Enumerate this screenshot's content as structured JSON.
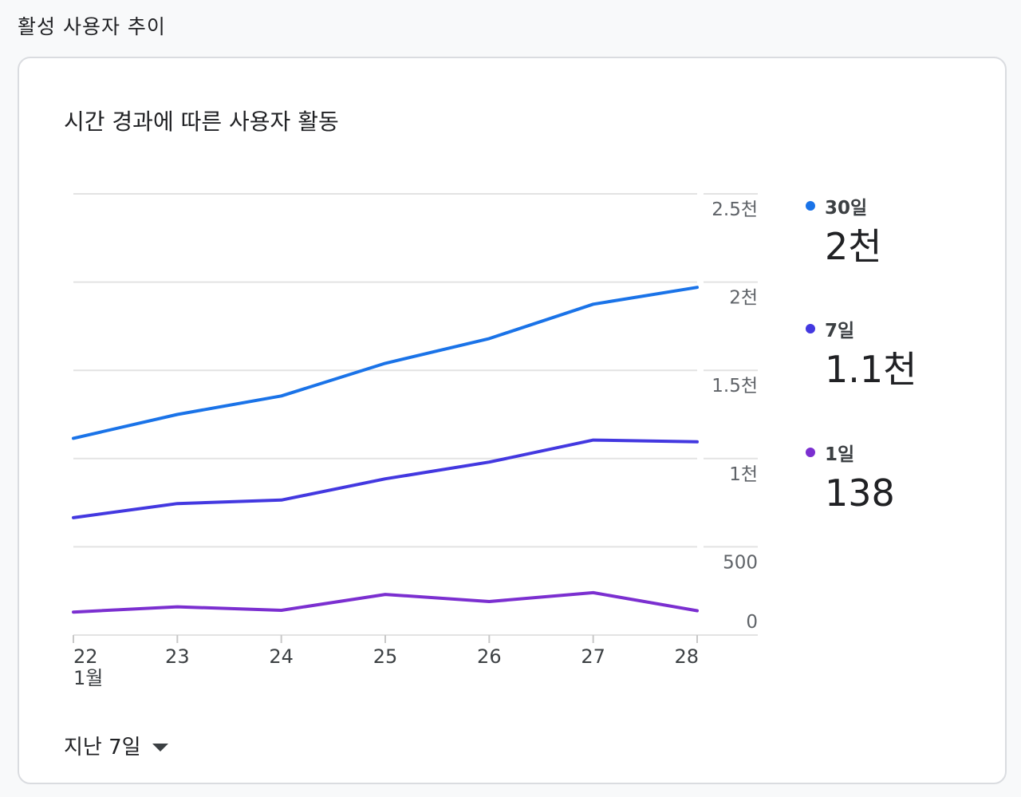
{
  "section_title": "활성 사용자 추이",
  "card_title": "시간 경과에 따른 사용자 활동",
  "legend": [
    {
      "label": "30일",
      "value": "2천",
      "color": "#1a73e8"
    },
    {
      "label": "7일",
      "value": "1.1천",
      "color": "#4338e0"
    },
    {
      "label": "1일",
      "value": "138",
      "color": "#7b2fd0"
    }
  ],
  "range_selector": {
    "label": "지난 7일",
    "icon": "arrow-drop-down-icon"
  },
  "chart_data": {
    "type": "line",
    "x": [
      "22",
      "23",
      "24",
      "25",
      "26",
      "27",
      "28"
    ],
    "x_sublabel": "1월",
    "y_ticks": [
      {
        "value": 0,
        "label": "0"
      },
      {
        "value": 500,
        "label": "500"
      },
      {
        "value": 1000,
        "label": "1천"
      },
      {
        "value": 1500,
        "label": "1.5천"
      },
      {
        "value": 2000,
        "label": "2천"
      },
      {
        "value": 2500,
        "label": "2.5천"
      }
    ],
    "ylim": [
      0,
      2500
    ],
    "grid": true,
    "series": [
      {
        "name": "30일",
        "color": "#1a73e8",
        "values": [
          1115,
          1250,
          1355,
          1540,
          1680,
          1875,
          1970
        ]
      },
      {
        "name": "7일",
        "color": "#4338e0",
        "values": [
          665,
          745,
          765,
          885,
          980,
          1105,
          1095
        ]
      },
      {
        "name": "1일",
        "color": "#7b2fd0",
        "values": [
          130,
          160,
          140,
          230,
          190,
          240,
          138
        ]
      }
    ]
  }
}
